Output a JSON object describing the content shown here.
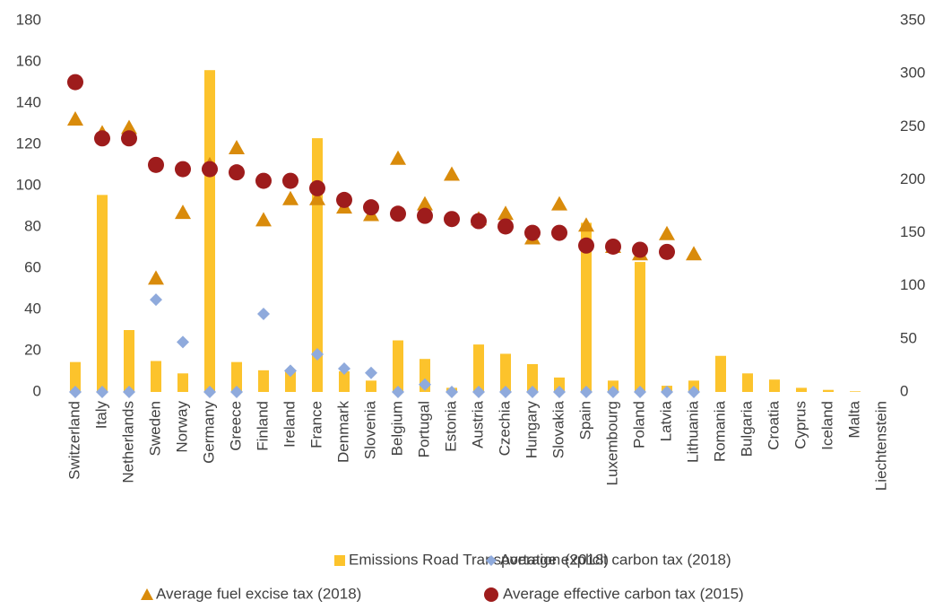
{
  "chart_data": {
    "type": "combo",
    "categories": [
      "Switzerland",
      "Italy",
      "Netherlands",
      "Sweden",
      "Norway",
      "Germany",
      "Greece",
      "Finland",
      "Ireland",
      "France",
      "Denmark",
      "Slovenia",
      "Belgium",
      "Portugal",
      "Estonia",
      "Austria",
      "Czechia",
      "Hungary",
      "Slovakia",
      "Spain",
      "Luxembourg",
      "Poland",
      "Latvia",
      "Lithuania",
      "Romania",
      "Bulgaria",
      "Croatia",
      "Cyprus",
      "Iceland",
      "Malta",
      "Liechtenstein"
    ],
    "series": [
      {
        "name": "Emissions Road Transportation (2018)",
        "type": "bar",
        "color": "#fcc32c",
        "axis": "y",
        "values": [
          14.5,
          95.5,
          30,
          15,
          9,
          156,
          14.5,
          10.5,
          10,
          123,
          10,
          5.5,
          25,
          16,
          2,
          23,
          18.5,
          13.5,
          7,
          82,
          5.5,
          63,
          3,
          5.5,
          17.5,
          9,
          6,
          2,
          1,
          0.3,
          0
        ]
      },
      {
        "name": "Average explicit carbon tax (2018)",
        "type": "scatter",
        "marker": "diamond",
        "color": "#8faadc",
        "axis": "y2",
        "values": [
          0,
          0,
          0,
          87,
          47,
          0,
          0,
          73.5,
          20,
          35.5,
          22,
          18,
          0,
          7,
          0,
          0,
          0,
          0,
          0,
          0,
          0,
          0,
          0,
          0,
          null,
          null,
          null,
          null,
          null,
          null,
          null
        ]
      },
      {
        "name": "Average fuel excise tax (2018)",
        "type": "scatter",
        "marker": "triangle",
        "color": "#d98b0b",
        "axis": "y2",
        "values": [
          257,
          244,
          249,
          107,
          169,
          214,
          230,
          162,
          182,
          182,
          174,
          167,
          220,
          177,
          205,
          163,
          168,
          145,
          177,
          157,
          137,
          130,
          149,
          130,
          null,
          null,
          null,
          null,
          null,
          null,
          null
        ]
      },
      {
        "name": "Average effective carbon tax (2015)",
        "type": "scatter",
        "marker": "circle",
        "color": "#9e1c1c",
        "axis": "y2",
        "values": [
          292,
          239,
          239,
          214,
          210,
          210,
          207,
          199,
          199,
          192,
          181,
          174,
          168,
          166,
          163,
          161,
          156,
          150,
          150,
          138,
          137,
          134,
          132,
          null,
          null,
          null,
          null,
          null,
          null,
          null,
          null
        ]
      }
    ],
    "ylim": [
      0,
      180
    ],
    "yticks": [
      0,
      20,
      40,
      60,
      80,
      100,
      120,
      140,
      160,
      180
    ],
    "y2lim": [
      0,
      350
    ],
    "y2ticks": [
      0,
      50,
      100,
      150,
      200,
      250,
      300,
      350
    ],
    "grid": false,
    "legend": "bottom"
  }
}
